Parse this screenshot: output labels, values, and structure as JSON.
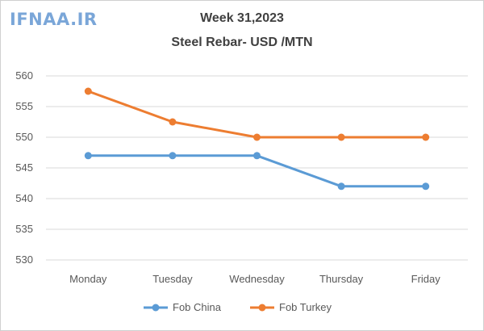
{
  "logo_text": "IFNAA.IR",
  "chart_data": {
    "type": "line",
    "title": "Week 31,2023",
    "subtitle": "Steel Rebar- USD /MTN",
    "categories": [
      "Monday",
      "Tuesday",
      "Wednesday",
      "Thursday",
      "Friday"
    ],
    "series": [
      {
        "name": "Fob China",
        "color": "#5b9bd5",
        "values": [
          547,
          547,
          547,
          542,
          542
        ]
      },
      {
        "name": "Fob Turkey",
        "color": "#ed7d31",
        "values": [
          557.5,
          552.5,
          550,
          550,
          550
        ]
      }
    ],
    "ylim": [
      530,
      560
    ],
    "yticks": [
      530,
      535,
      540,
      545,
      550,
      555,
      560
    ],
    "grid": true,
    "legend_position": "bottom"
  }
}
